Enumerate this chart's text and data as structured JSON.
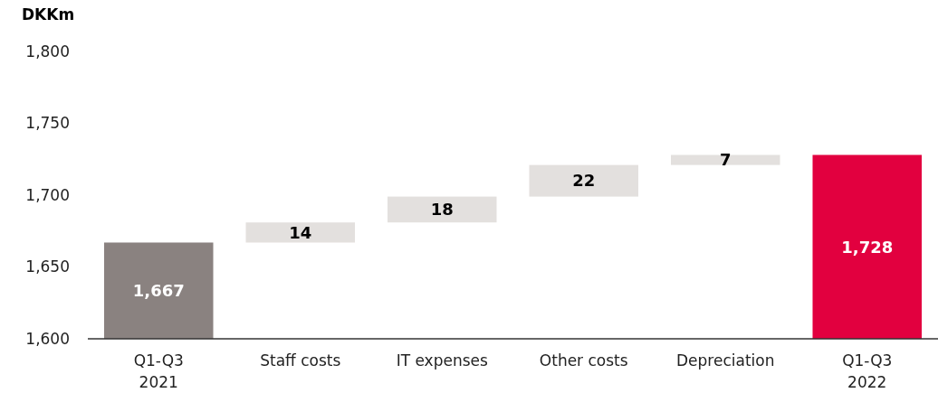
{
  "chart_data": {
    "type": "bar",
    "ylabel": "DKKm",
    "categories": [
      "Q1-Q3\n2021",
      "Staff costs",
      "IT expenses",
      "Other costs",
      "Depreciation",
      "Q1-Q3\n2022"
    ],
    "values": [
      1667,
      14,
      18,
      22,
      7,
      1728
    ],
    "base": [
      null,
      1667,
      1681,
      1699,
      1721,
      null
    ],
    "colors": [
      "#8a8280",
      "#e3e0de",
      "#e3e0de",
      "#e3e0de",
      "#e3e0de",
      "#e2003f"
    ],
    "value_labels": [
      "1,667",
      "14",
      "18",
      "22",
      "7",
      "1,728"
    ],
    "ylim": [
      1600,
      1800
    ],
    "yticks": [
      {
        "value": 1600,
        "label": "1,600"
      },
      {
        "value": 1650,
        "label": "1,650"
      },
      {
        "value": 1700,
        "label": "1,700"
      },
      {
        "value": 1750,
        "label": "1,750"
      },
      {
        "value": 1800,
        "label": "1,800"
      }
    ],
    "grid": false
  }
}
